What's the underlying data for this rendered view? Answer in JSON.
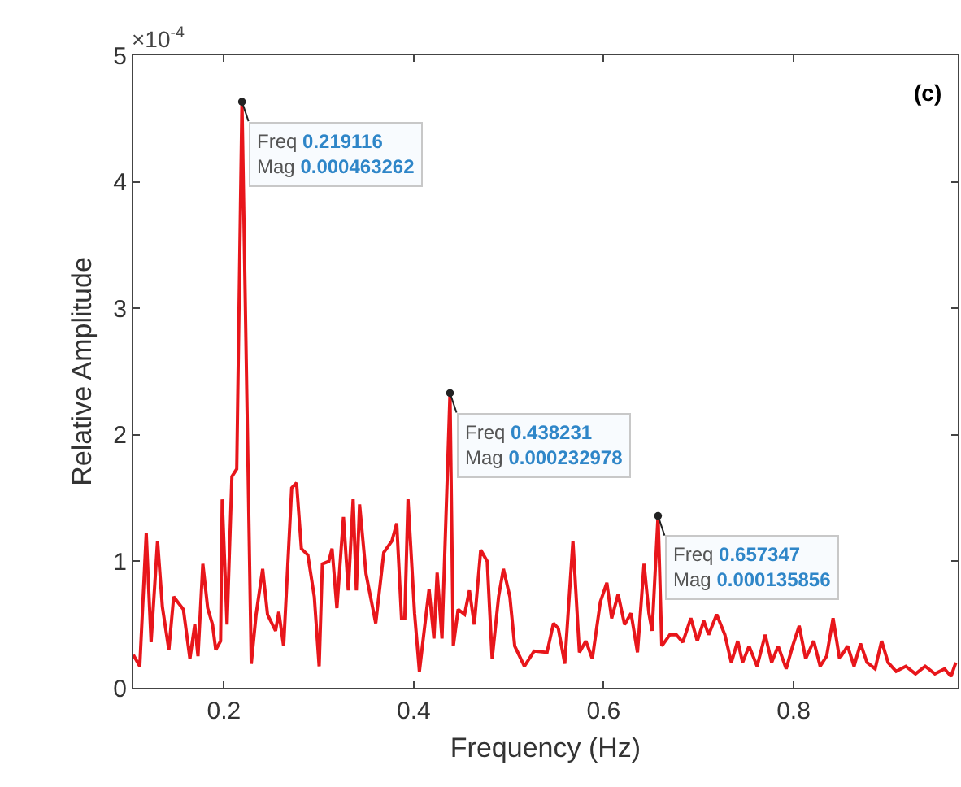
{
  "chart_data": {
    "type": "line",
    "xlabel": "Frequency (Hz)",
    "ylabel": "Relative Amplitude",
    "xlim": [
      0.1047,
      0.973
    ],
    "xticks": [
      0.2,
      0.4,
      0.6,
      0.8
    ],
    "ylim": [
      0,
      5
    ],
    "yticks": [
      0,
      1,
      2,
      3,
      4,
      5
    ],
    "grid": false,
    "marker": "none",
    "line_style": "solid",
    "series": [
      {
        "color": "#e8161b",
        "x": [
          0.1047,
          0.1115,
          0.1183,
          0.1234,
          0.1302,
          0.1353,
          0.1421,
          0.1472,
          0.1574,
          0.1643,
          0.1694,
          0.1728,
          0.1779,
          0.183,
          0.1881,
          0.1915,
          0.1966,
          0.1983,
          0.2034,
          0.2085,
          0.2136,
          0.219116,
          0.2289,
          0.234,
          0.2409,
          0.246,
          0.2545,
          0.2579,
          0.263,
          0.2715,
          0.2766,
          0.2817,
          0.2885,
          0.2953,
          0.3004,
          0.3038,
          0.3106,
          0.314,
          0.3191,
          0.326,
          0.3311,
          0.3362,
          0.3396,
          0.343,
          0.3498,
          0.36,
          0.3685,
          0.377,
          0.3821,
          0.3872,
          0.3906,
          0.394,
          0.4009,
          0.406,
          0.4162,
          0.4213,
          0.4247,
          0.4298,
          0.438231,
          0.4417,
          0.4468,
          0.4536,
          0.4587,
          0.4638,
          0.4706,
          0.4774,
          0.4826,
          0.4894,
          0.4945,
          0.5013,
          0.5064,
          0.5166,
          0.5268,
          0.5404,
          0.5472,
          0.5523,
          0.5591,
          0.5677,
          0.5745,
          0.5813,
          0.5881,
          0.5966,
          0.6034,
          0.6085,
          0.6153,
          0.6221,
          0.6289,
          0.6357,
          0.6426,
          0.6477,
          0.6511,
          0.657347,
          0.6613,
          0.6698,
          0.6766,
          0.6834,
          0.6919,
          0.6987,
          0.7055,
          0.7106,
          0.7191,
          0.7277,
          0.7345,
          0.7413,
          0.7464,
          0.7532,
          0.7617,
          0.7702,
          0.777,
          0.7838,
          0.7923,
          0.7991,
          0.806,
          0.8128,
          0.8213,
          0.8281,
          0.8349,
          0.8417,
          0.8485,
          0.857,
          0.8638,
          0.8706,
          0.8774,
          0.886,
          0.8928,
          0.8996,
          0.9081,
          0.9183,
          0.9285,
          0.9387,
          0.9489,
          0.9591,
          0.9659,
          0.971
        ],
        "values": [
          0.26,
          0.17,
          1.22,
          0.36,
          1.16,
          0.64,
          0.3,
          0.72,
          0.62,
          0.23,
          0.5,
          0.25,
          0.98,
          0.63,
          0.5,
          0.3,
          0.37,
          1.49,
          0.5,
          1.67,
          1.73,
          4.63262,
          0.19,
          0.58,
          0.94,
          0.58,
          0.45,
          0.6,
          0.33,
          1.58,
          1.62,
          1.1,
          1.05,
          0.72,
          0.17,
          0.98,
          1.0,
          1.1,
          0.63,
          1.35,
          0.77,
          1.49,
          0.77,
          1.45,
          0.9,
          0.51,
          1.07,
          1.16,
          1.3,
          0.55,
          0.55,
          1.49,
          0.59,
          0.13,
          0.78,
          0.39,
          0.91,
          0.39,
          2.32978,
          0.33,
          0.62,
          0.58,
          0.77,
          0.5,
          1.09,
          1.0,
          0.23,
          0.72,
          0.94,
          0.72,
          0.33,
          0.17,
          0.29,
          0.28,
          0.51,
          0.47,
          0.19,
          1.16,
          0.28,
          0.37,
          0.23,
          0.68,
          0.83,
          0.55,
          0.74,
          0.5,
          0.59,
          0.28,
          0.98,
          0.59,
          0.45,
          1.35856,
          0.33,
          0.42,
          0.42,
          0.36,
          0.55,
          0.37,
          0.53,
          0.42,
          0.58,
          0.42,
          0.2,
          0.37,
          0.2,
          0.33,
          0.17,
          0.42,
          0.2,
          0.33,
          0.15,
          0.33,
          0.49,
          0.23,
          0.37,
          0.17,
          0.25,
          0.55,
          0.23,
          0.33,
          0.17,
          0.35,
          0.2,
          0.15,
          0.37,
          0.2,
          0.13,
          0.17,
          0.11,
          0.17,
          0.11,
          0.15,
          0.09,
          0.2
        ]
      }
    ],
    "annotations": [
      "×10$^{-4}$",
      "(c)",
      {
        "text": "Freq 0.219116\nMag 0.000463262",
        "x": 0.219116,
        "y": 4.63262
      },
      {
        "text": "Freq 0.438231\nMag 0.000232978",
        "x": 0.438231,
        "y": 2.32978
      },
      {
        "text": "Freq 0.657347\nMag 0.000135856",
        "x": 0.657347,
        "y": 1.35856
      }
    ]
  }
}
